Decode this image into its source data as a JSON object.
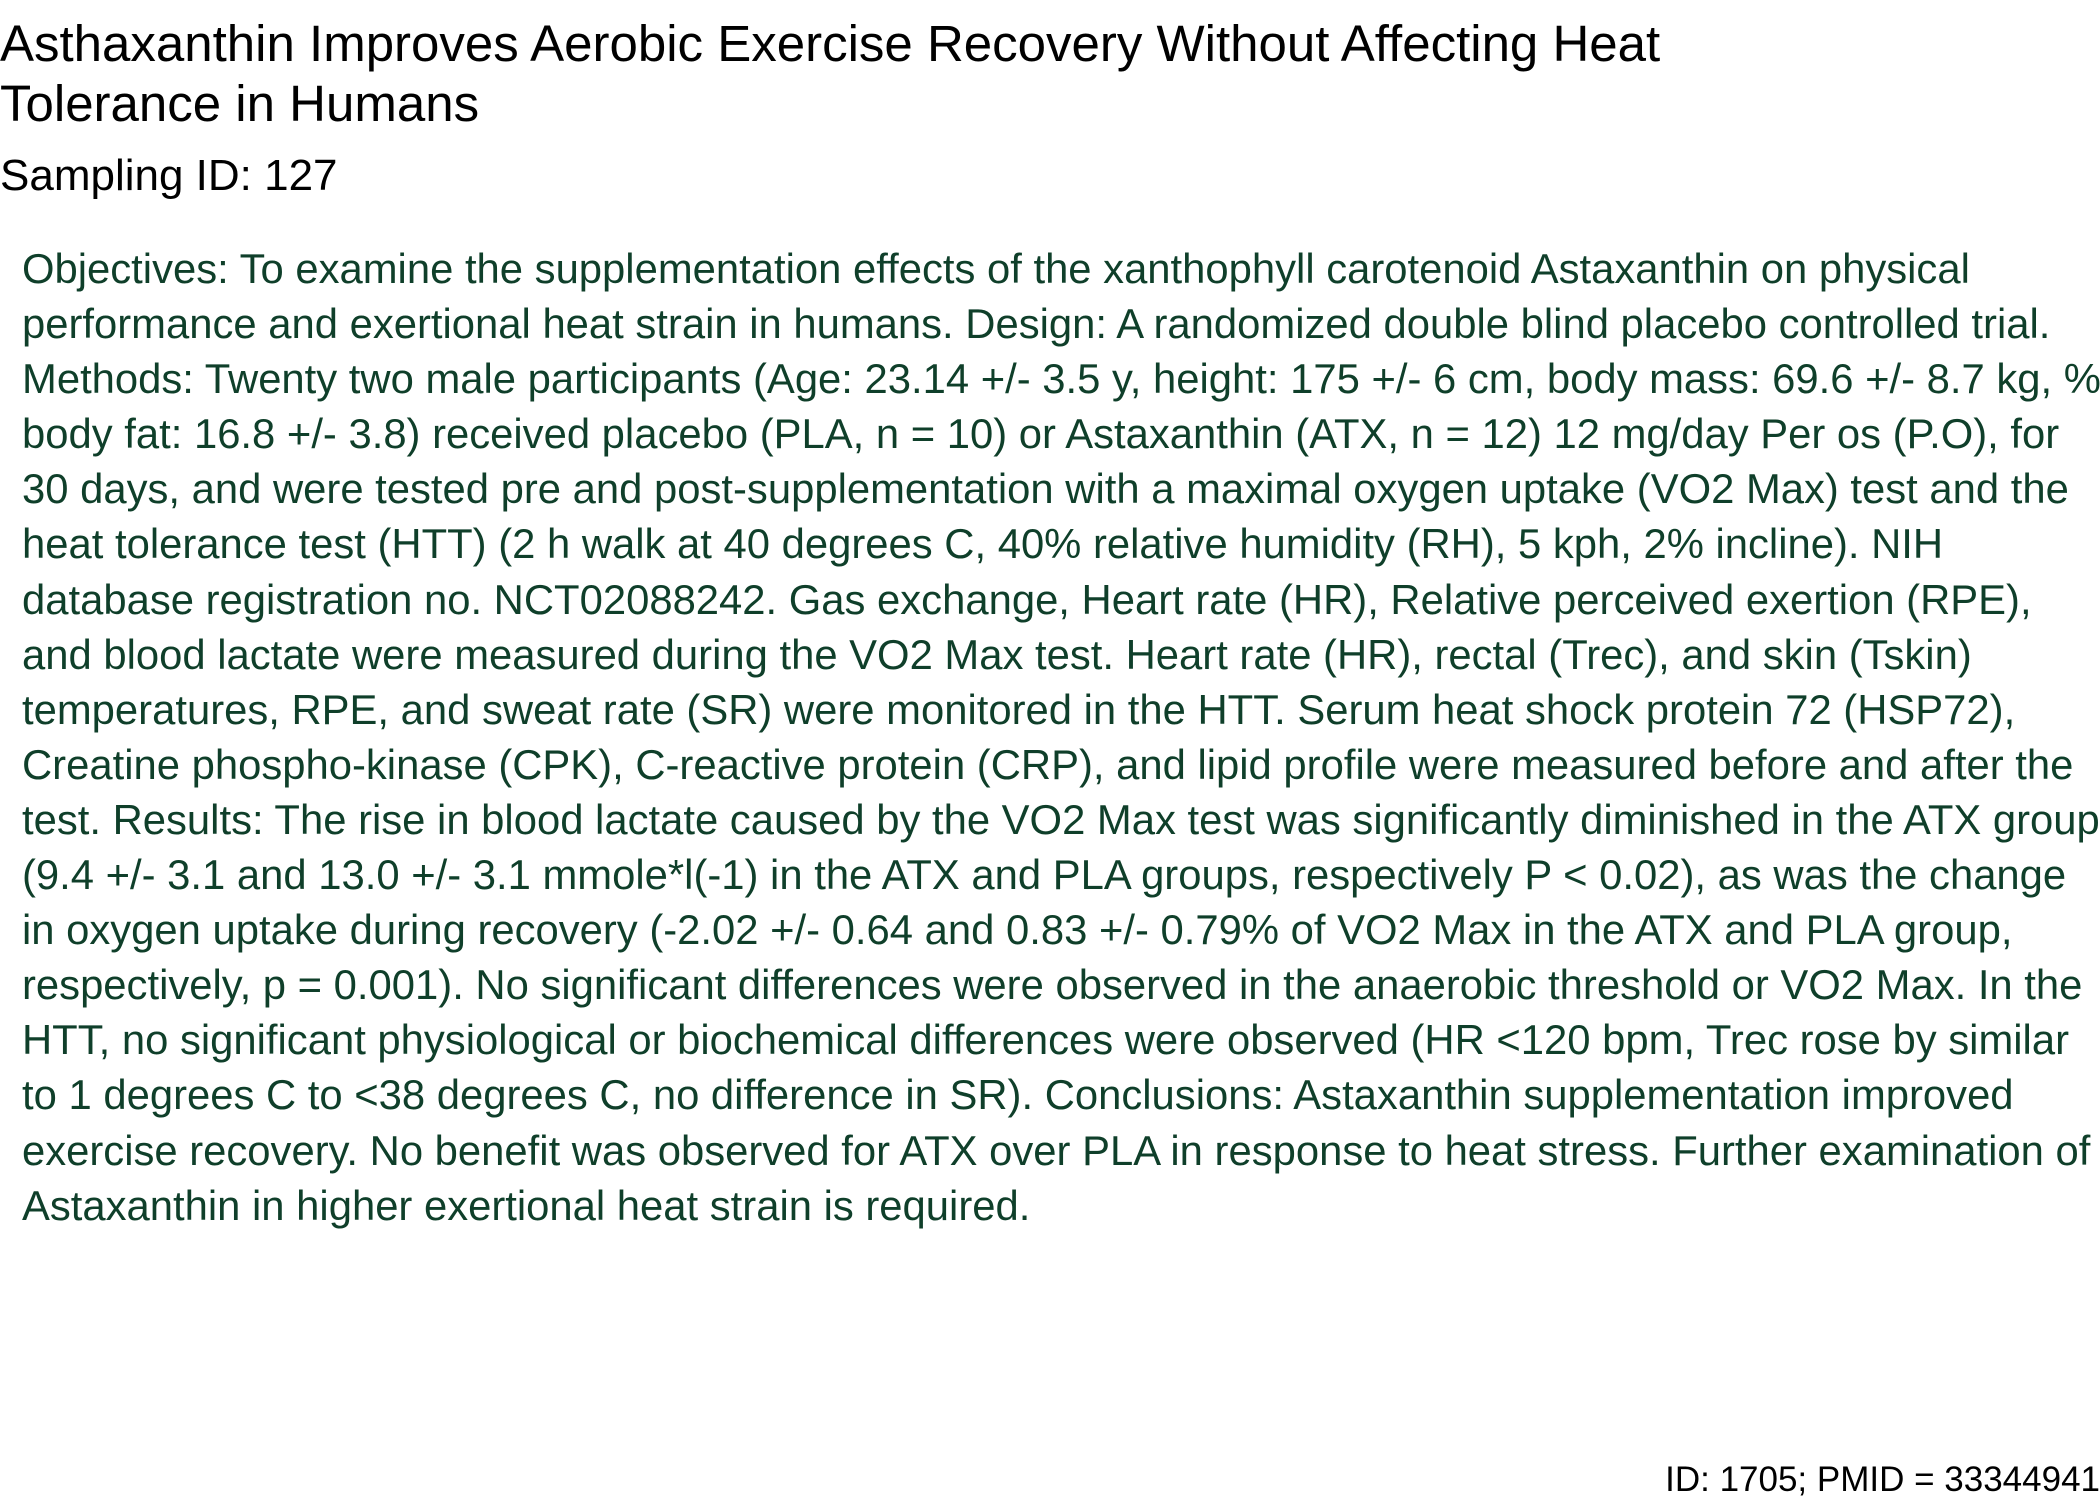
{
  "document": {
    "title": "Asthaxanthin Improves Aerobic Exercise Recovery Without Affecting Heat Tolerance in Humans",
    "sampling_id": "Sampling ID: 127",
    "abstract": "Objectives: To examine the supplementation effects of the xanthophyll carotenoid Astaxanthin on physical performance and exertional heat strain in humans. Design: A randomized double blind placebo controlled trial. Methods: Twenty two male participants (Age: 23.14 +/- 3.5 y, height: 175 +/- 6 cm, body mass: 69.6 +/- 8.7 kg, % body fat: 16.8 +/- 3.8) received placebo (PLA, n = 10) or Astaxanthin (ATX, n = 12) 12 mg/day Per os (P.O), for 30 days, and were tested pre and post-supplementation with a maximal oxygen uptake (VO2 Max) test and the heat tolerance test (HTT) (2 h walk at 40 degrees C, 40% relative humidity (RH), 5 kph, 2% incline). NIH database registration no. NCT02088242. Gas exchange, Heart rate (HR), Relative perceived exertion (RPE), and blood lactate were measured during the VO2 Max test. Heart rate (HR), rectal (Trec), and skin (Tskin) temperatures, RPE, and sweat rate (SR) were monitored in the HTT. Serum heat shock protein 72 (HSP72), Creatine phospho-kinase (CPK), C-reactive protein (CRP), and lipid profile were measured before and after the test. Results: The rise in blood lactate caused by the VO2 Max test was significantly diminished in the ATX group (9.4 +/- 3.1 and 13.0 +/- 3.1 mmole*l(-1) in the ATX and PLA groups, respectively P < 0.02), as was the change in oxygen uptake during recovery (-2.02 +/- 0.64 and 0.83 +/- 0.79% of VO2 Max in the ATX and PLA group, respectively, p = 0.001). No significant differences were observed in the anaerobic threshold or VO2 Max. In the HTT, no significant physiological or biochemical differences were observed (HR <120 bpm, Trec rose by similar to 1 degrees C to <38 degrees C, no difference in SR). Conclusions: Astaxanthin supplementation improved exercise recovery. No benefit was observed for ATX over PLA in response to heat stress. Further examination of Astaxanthin in higher exertional heat strain is required.",
    "footer_id": "ID: 1705; PMID = 33344941"
  },
  "colors": {
    "title_text": "#000000",
    "abstract_text": "#0f3f2a",
    "background": "#ffffff"
  }
}
